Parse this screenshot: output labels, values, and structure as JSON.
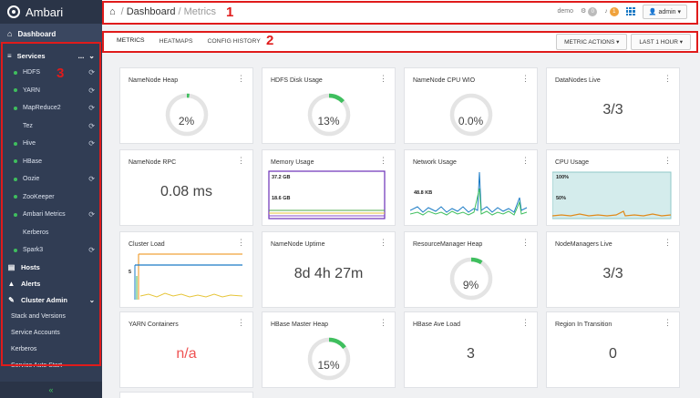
{
  "brand": {
    "name": "Ambari"
  },
  "sidebar": {
    "dashboard": "Dashboard",
    "services_label": "Services",
    "services_dots": "...",
    "services": [
      {
        "name": "HDFS",
        "status": "green",
        "refresh": true
      },
      {
        "name": "YARN",
        "status": "green",
        "refresh": true
      },
      {
        "name": "MapReduce2",
        "status": "green",
        "refresh": true
      },
      {
        "name": "Tez",
        "status": "none",
        "refresh": true
      },
      {
        "name": "Hive",
        "status": "green",
        "refresh": true
      },
      {
        "name": "HBase",
        "status": "green",
        "refresh": false
      },
      {
        "name": "Oozie",
        "status": "green",
        "refresh": true
      },
      {
        "name": "ZooKeeper",
        "status": "green",
        "refresh": false
      },
      {
        "name": "Ambari Metrics",
        "status": "green",
        "refresh": true
      },
      {
        "name": "Kerberos",
        "status": "none",
        "refresh": false
      },
      {
        "name": "Spark3",
        "status": "green",
        "refresh": true
      }
    ],
    "hosts": "Hosts",
    "alerts": "Alerts",
    "cluster_admin": "Cluster Admin",
    "admin_links": [
      "Stack and Versions",
      "Service Accounts",
      "Kerberos",
      "Service Auto Start"
    ],
    "collapse": "«"
  },
  "topbar": {
    "breadcrumb_section": "Dashboard",
    "breadcrumb_current": "Metrics",
    "cluster": "demo",
    "ops_count": "0",
    "alerts_count": "1",
    "user": "admin"
  },
  "tabs": {
    "metrics": "METRICS",
    "heatmaps": "HEATMAPS",
    "config_history": "CONFIG HISTORY",
    "metric_actions": "METRIC ACTIONS",
    "time_range": "LAST 1 HOUR"
  },
  "annotations": {
    "one": "1",
    "two": "2",
    "three": "3"
  },
  "widgets": {
    "namenode_heap": {
      "title": "NameNode Heap",
      "value": "2%",
      "fraction": 0.02
    },
    "hdfs_disk": {
      "title": "HDFS Disk Usage",
      "value": "13%",
      "fraction": 0.13
    },
    "namenode_cpu": {
      "title": "NameNode CPU WIO",
      "value": "0.0%",
      "fraction": 0.0
    },
    "datanodes": {
      "title": "DataNodes Live",
      "value": "3/3"
    },
    "namenode_rpc": {
      "title": "NameNode RPC",
      "value": "0.08 ms"
    },
    "memory": {
      "title": "Memory Usage",
      "label_top": "37.2 GB",
      "label_mid": "18.6 GB"
    },
    "network": {
      "title": "Network Usage",
      "label": "48.8 KB"
    },
    "cpu": {
      "title": "CPU Usage",
      "label_top": "100%",
      "label_mid": "50%"
    },
    "cluster_load": {
      "title": "Cluster Load",
      "label": "5"
    },
    "namenode_uptime": {
      "title": "NameNode Uptime",
      "value": "8d 4h 27m"
    },
    "rm_heap": {
      "title": "ResourceManager Heap",
      "value": "9%",
      "fraction": 0.09
    },
    "nodemanagers": {
      "title": "NodeManagers Live",
      "value": "3/3"
    },
    "yarn_containers": {
      "title": "YARN Containers",
      "value": "n/a"
    },
    "hbase_master_heap": {
      "title": "HBase Master Heap",
      "value": "15%",
      "fraction": 0.15
    },
    "hbase_ave_load": {
      "title": "HBase Ave Load",
      "value": "3"
    },
    "region_transition": {
      "title": "Region In Transition",
      "value": "0"
    }
  },
  "colors": {
    "accent": "#3fbf5e",
    "annotation": "#e01b1b",
    "sidebar": "#313d54"
  }
}
